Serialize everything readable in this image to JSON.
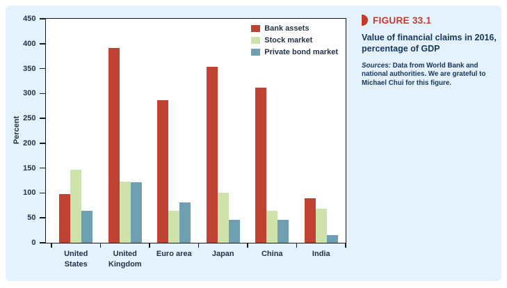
{
  "figure": {
    "label": "FIGURE 33.1",
    "title": "Value of financial claims in 2016, percentage of GDP",
    "sources_label": "Sources:",
    "sources_text": " Data from World Bank and national authorities. We are grateful to Michael Chui for this figure."
  },
  "colors": {
    "card_bg": "#e3f2fc",
    "plot_bg": "#ffffff",
    "axis": "#15181c",
    "tick_text": "#243247",
    "figure_red": "#c23b2c",
    "panel_navy": "#16365c"
  },
  "chart_data": {
    "type": "bar",
    "title": "",
    "xlabel": "",
    "ylabel": "Percent",
    "ylim": [
      0,
      450
    ],
    "ytick_step": 50,
    "grid": false,
    "legend_position": "top-right-inside",
    "categories": [
      "United States",
      "United Kingdom",
      "Euro area",
      "Japan",
      "China",
      "India"
    ],
    "category_label_lines": [
      [
        "United",
        "States"
      ],
      [
        "United",
        "Kingdom"
      ],
      [
        "Euro area"
      ],
      [
        "Japan"
      ],
      [
        "China"
      ],
      [
        "India"
      ]
    ],
    "series": [
      {
        "name": "Bank assets",
        "color": "#bf4232",
        "values": [
          98,
          392,
          287,
          353,
          311,
          90
        ]
      },
      {
        "name": "Stock market",
        "color": "#cde3a9",
        "values": [
          147,
          123,
          64,
          100,
          65,
          69
        ]
      },
      {
        "name": "Private bond market",
        "color": "#6f9fb3",
        "values": [
          65,
          121,
          81,
          46,
          46,
          15
        ]
      }
    ]
  }
}
